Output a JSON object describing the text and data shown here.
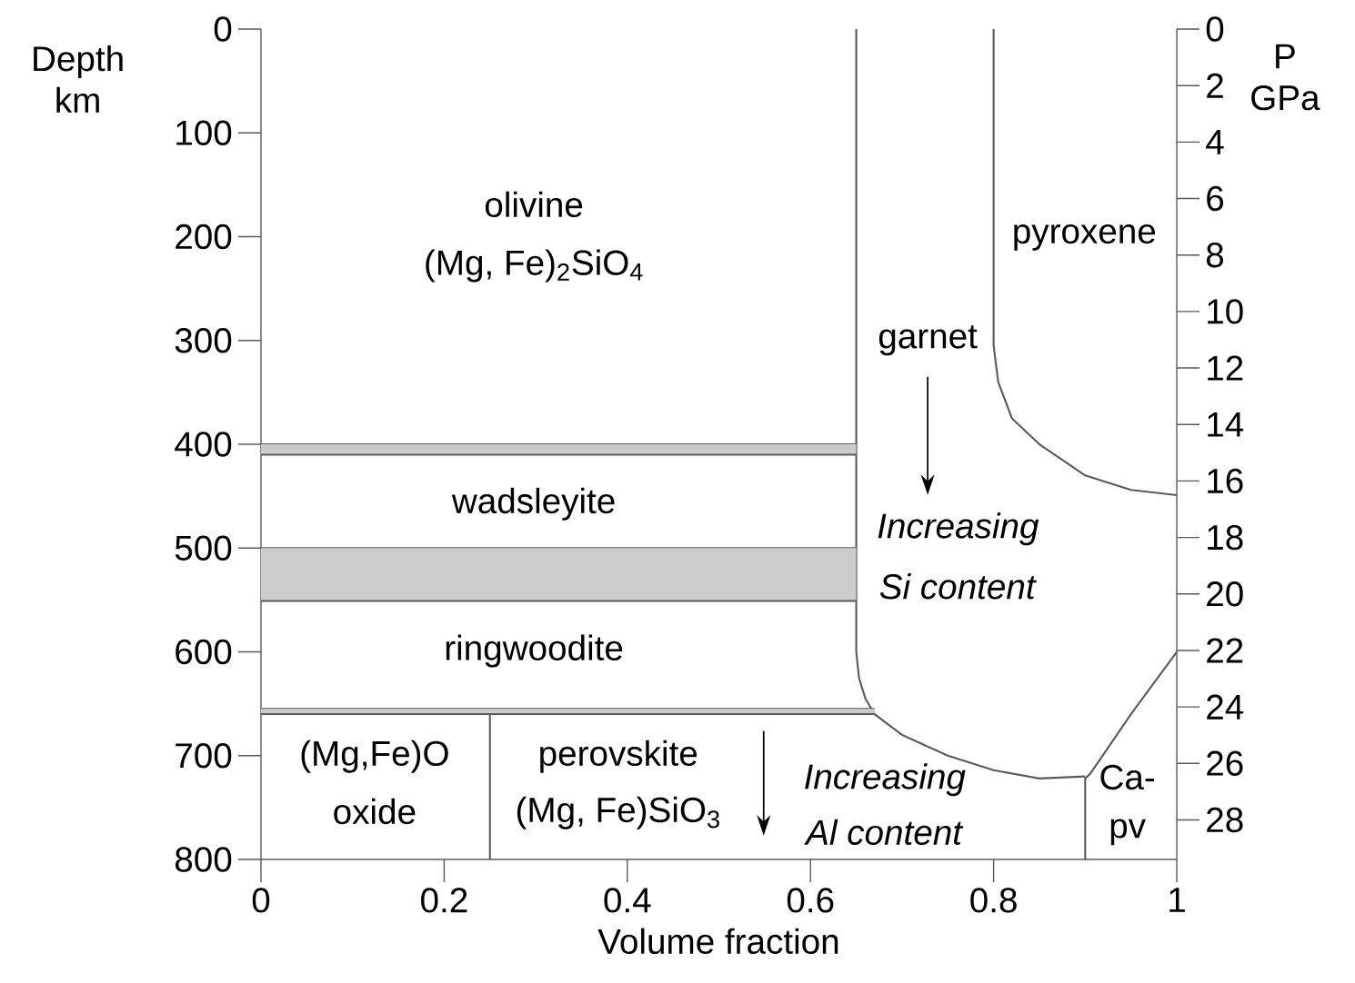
{
  "chart_data": {
    "type": "line",
    "xlabel": "Volume fraction",
    "ylabel": "Depth km",
    "y2label": "P GPa",
    "xlim": [
      0,
      1
    ],
    "xticks": [
      0,
      0.2,
      0.4,
      0.6,
      0.8,
      1
    ],
    "ylim": [
      800,
      0
    ],
    "yticks": [
      0,
      100,
      200,
      300,
      400,
      500,
      600,
      700,
      800
    ],
    "y2lim": [
      29.4,
      0
    ],
    "y2ticks": [
      0,
      2,
      4,
      6,
      8,
      10,
      12,
      14,
      16,
      18,
      20,
      22,
      24,
      26,
      28
    ],
    "series": [
      {
        "color": "#5a5a5a",
        "x": [
          0.65,
          0.65,
          0.653,
          0.66,
          0.67,
          0.7,
          0.75,
          0.8,
          0.85,
          0.9
        ],
        "values": [
          0,
          600,
          625,
          645,
          660,
          680,
          700,
          714,
          722,
          720
        ]
      },
      {
        "color": "#5a5a5a",
        "x": [
          0.8,
          0.8,
          0.805,
          0.82,
          0.85,
          0.9,
          0.95,
          1
        ],
        "values": [
          0,
          305,
          340,
          375,
          400,
          430,
          444,
          449
        ]
      },
      {
        "color": "#5a5a5a",
        "x": [
          1,
          0.95,
          0.905,
          0.9,
          0.9
        ],
        "values": [
          600,
          660,
          718,
          722,
          800
        ]
      },
      {
        "color": "#5a5a5a",
        "x": [
          0.25,
          0.25
        ],
        "values": [
          657,
          800
        ]
      },
      {
        "color": "#5a5a5a",
        "x": [
          0,
          0.65
        ],
        "values": [
          400,
          400
        ]
      },
      {
        "color": "#5a5a5a",
        "x": [
          0,
          0.65
        ],
        "values": [
          410,
          410
        ],
        "lower": [
          400,
          400
        ],
        "upper": [
          410,
          410
        ]
      },
      {
        "color": "#5a5a5a",
        "x": [
          0,
          0.65
        ],
        "values": [
          500,
          500
        ]
      },
      {
        "color": "#5a5a5a",
        "x": [
          0,
          0.65
        ],
        "values": [
          551,
          551
        ],
        "lower": [
          500,
          500
        ],
        "upper": [
          551,
          551
        ]
      },
      {
        "color": "#5a5a5a",
        "x": [
          0,
          0.67
        ],
        "values": [
          655,
          655
        ]
      },
      {
        "color": "#5a5a5a",
        "x": [
          0,
          0.67
        ],
        "values": [
          660,
          660
        ],
        "lower": [
          655,
          655
        ],
        "upper": [
          660,
          660
        ]
      }
    ],
    "annotations": [
      "olivine",
      "(Mg, Fe)$_{2}$SiO$_{4}$",
      "wadsleyite",
      "ringwoodite",
      "(Mg,Fe)O",
      "oxide",
      "perovskite",
      "(Mg, Fe)SiO$_{3}$",
      "*Increasing*",
      "*Al content*",
      "garnet",
      "*Increasing*",
      "*Si content*",
      "pyroxene",
      "Ca-",
      "pv"
    ]
  }
}
